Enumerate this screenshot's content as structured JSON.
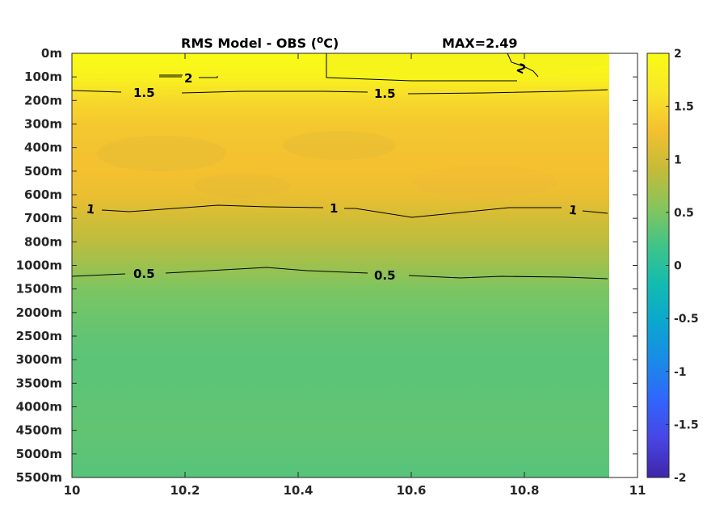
{
  "chart_data": {
    "type": "heatmap",
    "title": "RMS Model - OBS (",
    "title_sup": "o",
    "title_unit": "C)",
    "max_label": "MAX=2.49",
    "xlim": [
      10,
      11
    ],
    "x_ticks": [
      "10",
      "10.2",
      "10.4",
      "10.6",
      "10.8",
      "11"
    ],
    "data_x_end": 10.95,
    "depth_labels": [
      "0m",
      "100m",
      "200m",
      "300m",
      "400m",
      "500m",
      "600m",
      "700m",
      "800m",
      "1000m",
      "1500m",
      "2000m",
      "2500m",
      "3000m",
      "3500m",
      "4000m",
      "4500m",
      "5000m",
      "5500m"
    ],
    "depth_profile": [
      2.1,
      1.85,
      1.5,
      1.35,
      1.3,
      1.28,
      1.2,
      1.02,
      0.85,
      0.68,
      0.5,
      0.42,
      0.36,
      0.33,
      0.33,
      0.35,
      0.36,
      0.33,
      0.3
    ],
    "colorbar": {
      "limits": [
        -2,
        2
      ],
      "ticks": [
        "2",
        "1.5",
        "1",
        "0.5",
        "0",
        "-0.5",
        "-1",
        "-1.5",
        "-2"
      ],
      "colormap": "parula",
      "stops": [
        "#3e26a8",
        "#4845e4",
        "#3165fb",
        "#1a8ae8",
        "#0ba6d0",
        "#12bbb0",
        "#3fc48a",
        "#86c55b",
        "#c5bb39",
        "#f4c030",
        "#f9e62a",
        "#f9fb15"
      ]
    },
    "contours": [
      {
        "level": "2",
        "labels": [
          "2",
          "2"
        ]
      },
      {
        "level": "1.5",
        "labels": [
          "1.5",
          "1.5"
        ]
      },
      {
        "level": "1",
        "labels": [
          "1",
          "1",
          "1"
        ]
      },
      {
        "level": "0.5",
        "labels": [
          "0.5",
          "0.5"
        ]
      }
    ]
  }
}
